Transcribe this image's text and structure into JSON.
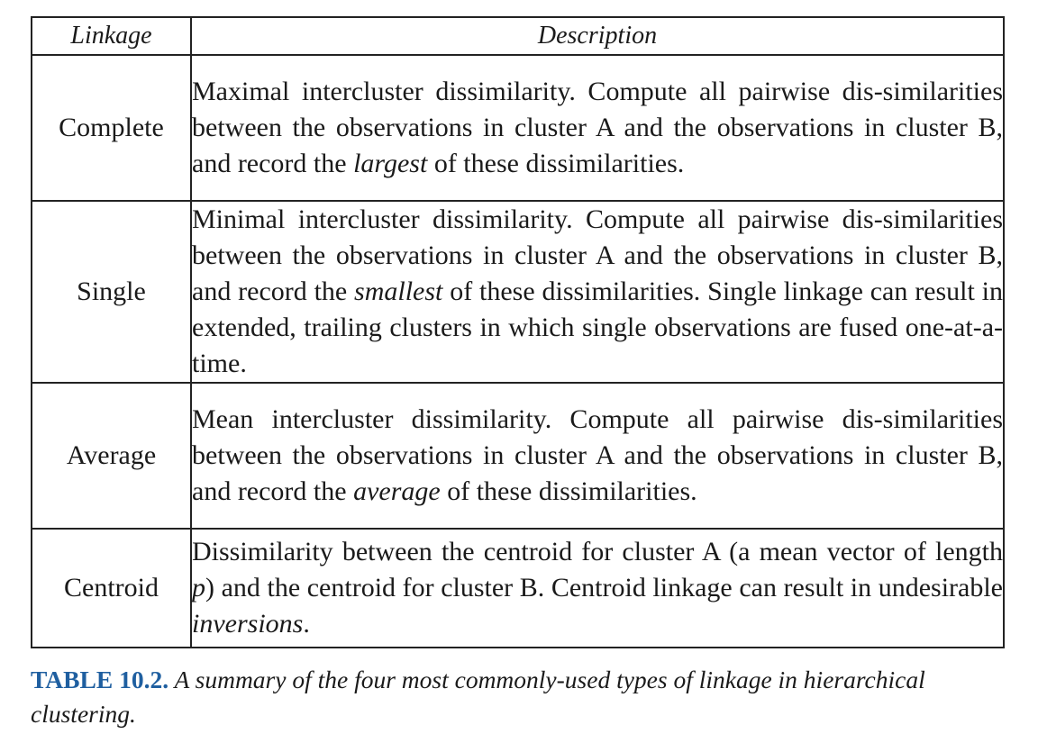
{
  "table": {
    "headers": {
      "linkage": "Linkage",
      "description": "Description"
    },
    "rows": [
      {
        "name": "Complete",
        "desc_before": "Maximal intercluster dissimilarity. Compute all pairwise dis-­similarities between the observations in cluster A and the observations in cluster B, and record the ",
        "desc_em": "largest",
        "desc_after": " of these dissimilarities."
      },
      {
        "name": "Single",
        "desc_before": "Minimal intercluster dissimilarity. Compute all pairwise dis-­similarities between the observations in cluster A and the observations in cluster B, and record the ",
        "desc_em": "smallest",
        "desc_after": " of these dissimilarities. Single linkage can result in extended, trailing clusters in which single observations are fused one-at-a-time."
      },
      {
        "name": "Average",
        "desc_before": "Mean intercluster dissimilarity. Compute all pairwise dis-­similarities between the observations in cluster A and the observations in cluster B, and record the ",
        "desc_em": "average",
        "desc_after": " of these dissimilarities."
      },
      {
        "name": "Centroid",
        "desc_before": "Dissimilarity between the centroid for cluster A (a mean vector of length ",
        "desc_em": "p",
        "desc_after": ") and the centroid for cluster B. Centroid linkage can result in undesirable ",
        "desc_em2": "inversions",
        "desc_after2": "."
      }
    ]
  },
  "caption": {
    "label": "TABLE 10.2.",
    "text": " A summary of the four most commonly-used types of linkage in hierarchical clustering."
  },
  "colors": {
    "caption_label": "#1f5fa0",
    "border": "#222222",
    "text": "#1a1a1a"
  }
}
